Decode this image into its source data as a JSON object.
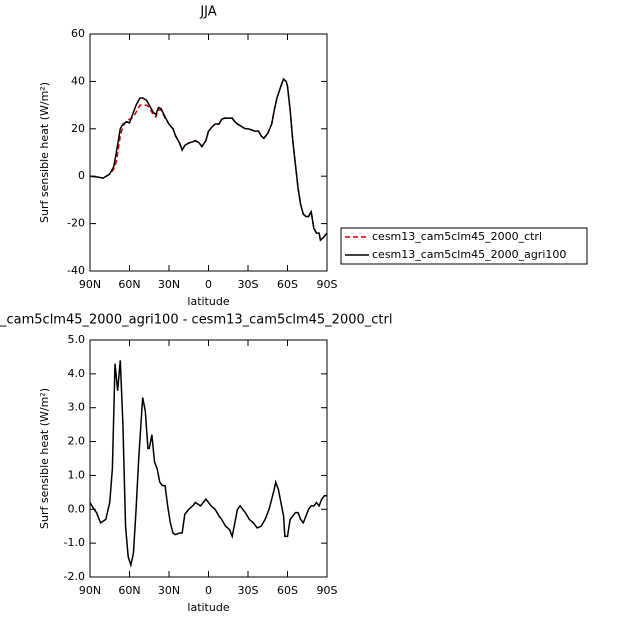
{
  "chart_data": [
    {
      "type": "line",
      "title": "JJA",
      "xlabel": "latitude",
      "ylabel": "Surf sensible heat (W/m²)",
      "x": [
        90,
        85,
        80,
        75,
        72,
        70,
        67,
        65,
        62,
        60,
        57,
        55,
        52,
        50,
        47,
        45,
        42,
        40,
        38,
        36,
        33,
        30,
        27,
        25,
        22,
        20,
        18,
        15,
        12,
        10,
        7,
        5,
        2,
        0,
        -3,
        -5,
        -8,
        -10,
        -12,
        -15,
        -18,
        -20,
        -22,
        -25,
        -28,
        -30,
        -33,
        -35,
        -38,
        -40,
        -42,
        -45,
        -48,
        -50,
        -52,
        -55,
        -57,
        -59,
        -60,
        -62,
        -64,
        -66,
        -68,
        -70,
        -72,
        -74,
        -76,
        -78,
        -80,
        -82,
        -84,
        -85,
        -87,
        -90
      ],
      "series": [
        {
          "name": "cesm13_cam5clm45_2000_ctrl",
          "color": "#cc0000",
          "linestyle": "dashed",
          "values": [
            0,
            -0.3,
            -0.8,
            0.8,
            3,
            6,
            17,
            21,
            23.5,
            24,
            25,
            27,
            30,
            30,
            30,
            29,
            26,
            25,
            28,
            28,
            24.5,
            22,
            20,
            17,
            14,
            11,
            13,
            14,
            14.5,
            15,
            14,
            12.5,
            15,
            19,
            21,
            22,
            22,
            24,
            24.5,
            24.5,
            24.5,
            23,
            22,
            21,
            20,
            20,
            19.5,
            19,
            19,
            17,
            16,
            18,
            22,
            28,
            33,
            38,
            41,
            40,
            38,
            28,
            15,
            5,
            -5,
            -12,
            -16,
            -17,
            -17,
            -15,
            -22,
            -24,
            -24,
            -27,
            -26,
            -24
          ]
        },
        {
          "name": "cesm13_cam5clm45_2000_agri100",
          "color": "#000000",
          "linestyle": "solid",
          "values": [
            0,
            -0.3,
            -0.8,
            1,
            4,
            10,
            20,
            22,
            23,
            22.5,
            27,
            30,
            33,
            33,
            32,
            30,
            27,
            26,
            29,
            28.5,
            25,
            22,
            20,
            17,
            14,
            11,
            13,
            14,
            14.5,
            15,
            14,
            12.5,
            15,
            19,
            21,
            22,
            22,
            24,
            24.5,
            24.5,
            24.5,
            23,
            22,
            21,
            20,
            20,
            19.5,
            19,
            19,
            17,
            16,
            18,
            22,
            28,
            33,
            38,
            41,
            40,
            38,
            28,
            15,
            5,
            -5,
            -12,
            -16,
            -17,
            -17,
            -15,
            -22,
            -24,
            -24,
            -27,
            -26,
            -24
          ]
        }
      ],
      "xlim": [
        90,
        -90
      ],
      "xticks": [
        {
          "value": 90,
          "label": "90N"
        },
        {
          "value": 60,
          "label": "60N"
        },
        {
          "value": 30,
          "label": "30N"
        },
        0,
        {
          "value": -30,
          "label": "30S"
        },
        {
          "value": -60,
          "label": "60S"
        },
        {
          "value": -90,
          "label": "90S"
        }
      ],
      "ylim": [
        -40,
        60
      ],
      "yticks": [
        -40,
        -20,
        0,
        20,
        40,
        60
      ],
      "legend": "right"
    },
    {
      "type": "line",
      "title": "_cam5clm45_2000_agri100 - cesm13_cam5clm45_2000_ctrl",
      "xlabel": "latitude",
      "ylabel": "Surf sensible heat (W/m²)",
      "x": [
        90,
        87,
        85,
        82,
        78,
        75,
        73,
        71,
        69,
        67,
        65,
        63,
        61,
        59,
        57,
        55,
        53,
        51,
        50,
        48,
        46,
        45,
        43,
        41,
        39,
        37,
        35,
        33,
        31,
        29,
        27,
        25,
        22,
        20,
        18,
        15,
        12,
        10,
        8,
        6,
        4,
        2,
        0,
        -2,
        -5,
        -8,
        -10,
        -13,
        -16,
        -18,
        -20,
        -22,
        -24,
        -26,
        -28,
        -31,
        -34,
        -37,
        -40,
        -43,
        -46,
        -48,
        -50,
        -51,
        -53,
        -55,
        -57,
        -58,
        -60,
        -62,
        -64,
        -66,
        -68,
        -70,
        -72,
        -74,
        -76,
        -78,
        -80,
        -82,
        -84,
        -86,
        -88,
        -90
      ],
      "values": [
        0.2,
        0,
        -0.1,
        -0.4,
        -0.3,
        0.2,
        1.2,
        4.3,
        3.5,
        4.4,
        2.5,
        -0.5,
        -1.4,
        -1.65,
        -1.3,
        0,
        1.5,
        2.7,
        3.3,
        2.9,
        1.8,
        1.8,
        2.2,
        1.4,
        1.2,
        0.8,
        0.7,
        0.7,
        0.1,
        -0.4,
        -0.7,
        -0.75,
        -0.7,
        -0.7,
        -0.15,
        0,
        0.1,
        0.2,
        0.15,
        0.1,
        0.2,
        0.3,
        0.2,
        0.1,
        0,
        -0.2,
        -0.3,
        -0.5,
        -0.6,
        -0.8,
        -0.4,
        0,
        0.1,
        0,
        -0.1,
        -0.3,
        -0.4,
        -0.55,
        -0.5,
        -0.3,
        0,
        0.3,
        0.6,
        0.8,
        0.6,
        0.2,
        -0.2,
        -0.8,
        -0.8,
        -0.3,
        -0.2,
        -0.1,
        -0.1,
        -0.3,
        -0.4,
        -0.2,
        0,
        0.1,
        0.1,
        0.2,
        0.1,
        0.3,
        0.4,
        0.4
      ],
      "color": "#000000",
      "xlim": [
        90,
        -90
      ],
      "xticks": [
        {
          "value": 90,
          "label": "90N"
        },
        {
          "value": 60,
          "label": "60N"
        },
        {
          "value": 30,
          "label": "30N"
        },
        0,
        {
          "value": -30,
          "label": "30S"
        },
        {
          "value": -60,
          "label": "60S"
        },
        {
          "value": -90,
          "label": "90S"
        }
      ],
      "ylim": [
        -2,
        5
      ],
      "yticks": [
        {
          "value": -2,
          "label": "-2.0"
        },
        {
          "value": -1,
          "label": "-1.0"
        },
        {
          "value": 0,
          "label": "0.0"
        },
        {
          "value": 1,
          "label": "1.0"
        },
        {
          "value": 2,
          "label": "2.0"
        },
        {
          "value": 3,
          "label": "3.0"
        },
        {
          "value": 4,
          "label": "4.0"
        },
        {
          "value": 5,
          "label": "5.0"
        }
      ]
    }
  ]
}
